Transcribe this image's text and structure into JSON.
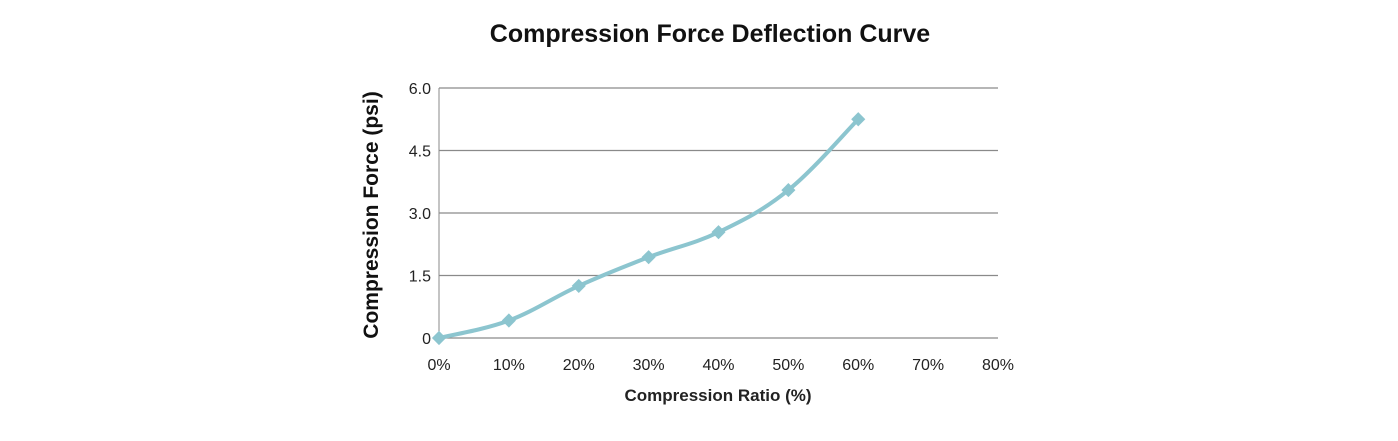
{
  "chart_data": {
    "type": "line",
    "title": "Compression Force Deflection Curve",
    "xlabel": "Compression Ratio (%)",
    "ylabel": "Compression Force  (psi)",
    "x_ticks": [
      "0%",
      "10%",
      "20%",
      "30%",
      "40%",
      "50%",
      "60%",
      "70%",
      "80%"
    ],
    "y_ticks": [
      "0",
      "1.5",
      "3.0",
      "4.5",
      "6.0"
    ],
    "xlim": [
      0,
      80
    ],
    "ylim": [
      0,
      6
    ],
    "grid": "horizontal",
    "line_color": "#8cc5cf",
    "series": [
      {
        "x": [
          0,
          10,
          20,
          30,
          40,
          50,
          60
        ],
        "values": [
          0,
          0.42,
          1.25,
          1.94,
          2.54,
          3.55,
          5.25
        ]
      }
    ]
  }
}
